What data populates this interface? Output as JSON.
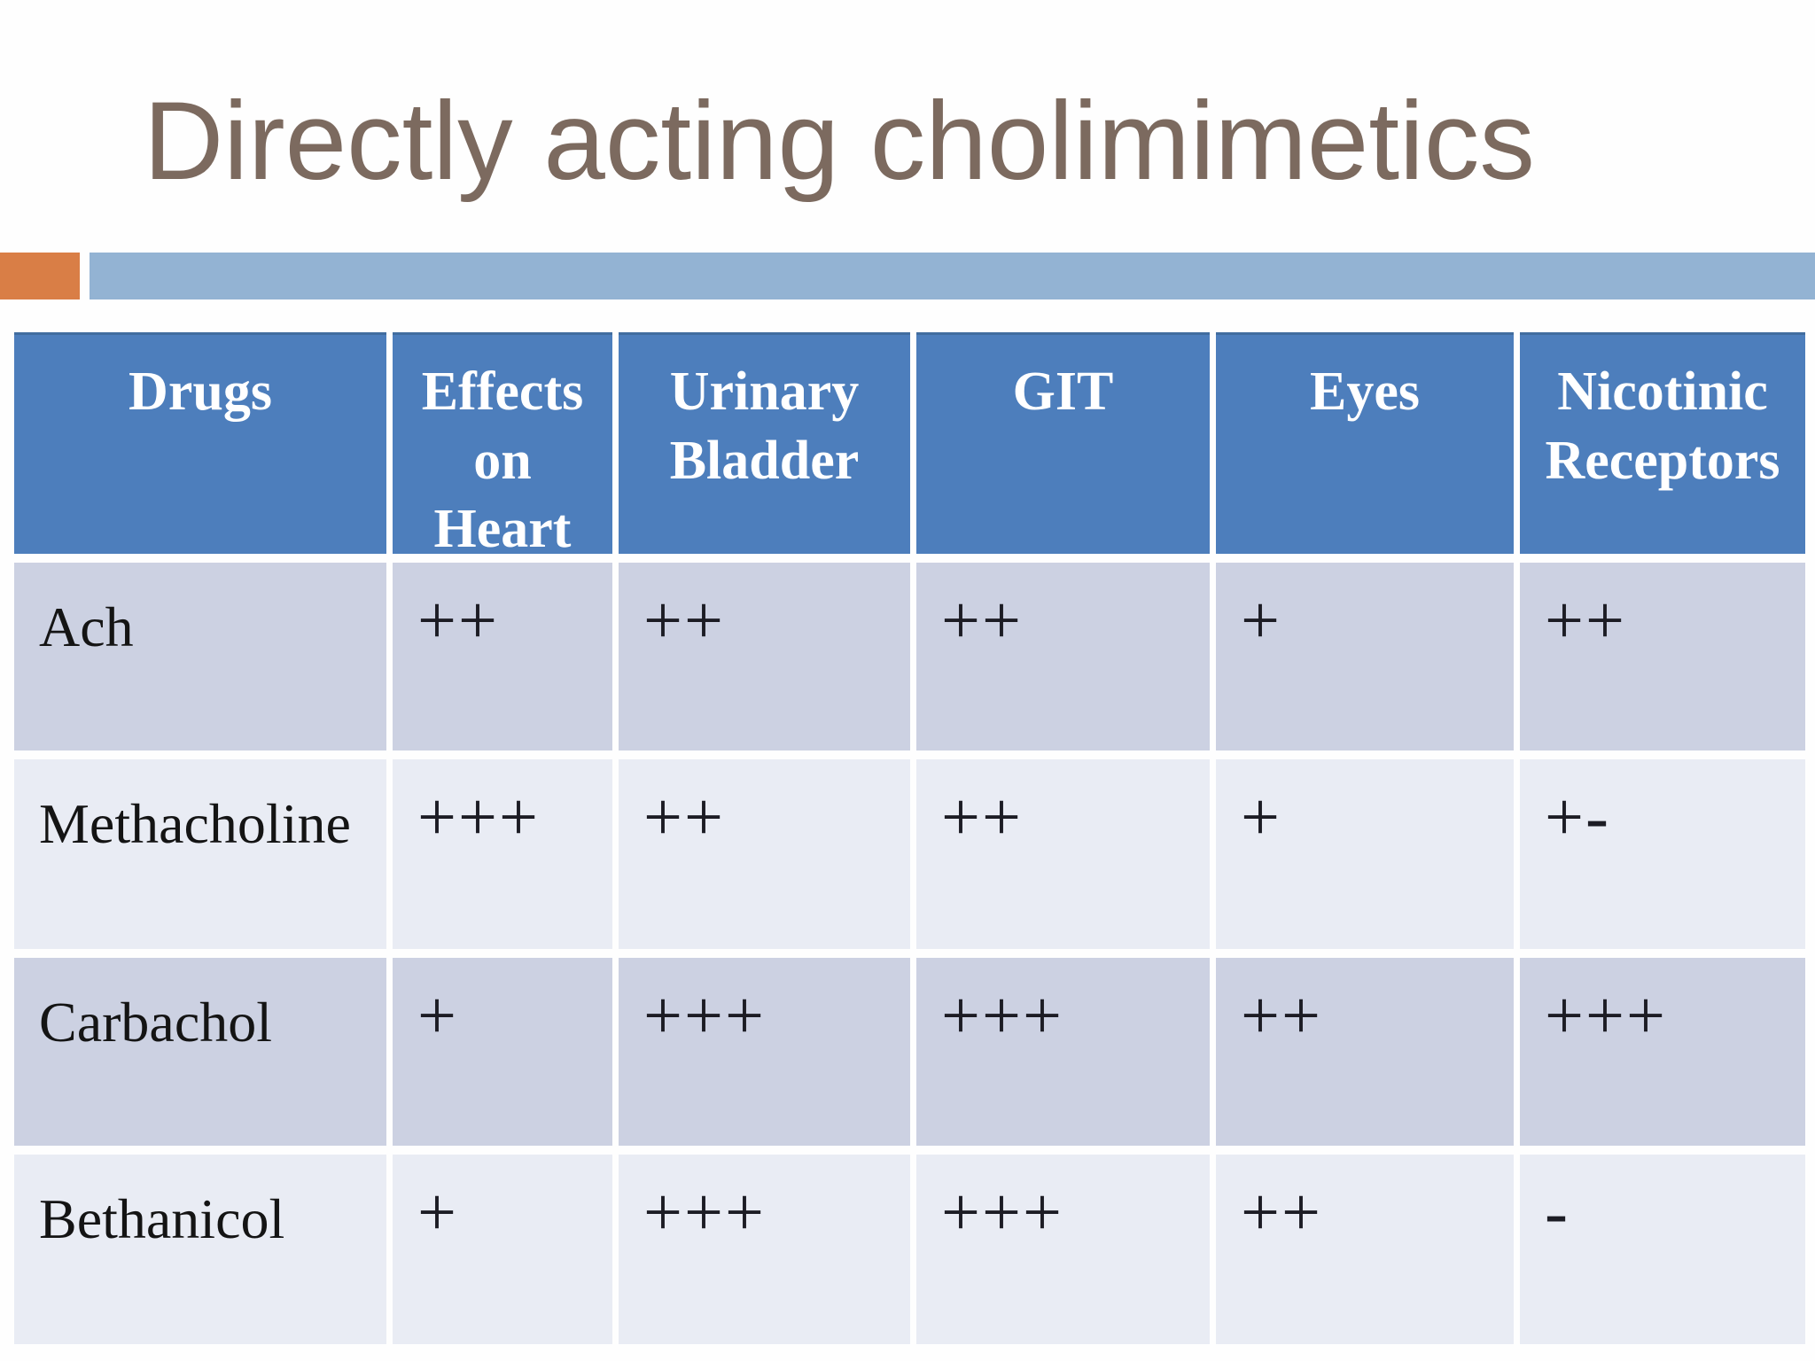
{
  "slide": {
    "title": "Directly acting cholimimetics"
  },
  "decor": {
    "orange_bar_color": "#d97e46",
    "blue_bar_color": "#93b3d3"
  },
  "table": {
    "header_bg": "#4d7ebc",
    "row_bg_dark": "#ccd1e2",
    "row_bg_light": "#e9ecf4",
    "columns": [
      "Drugs",
      "Effects on Heart",
      "Urinary Bladder",
      "GIT",
      "Eyes",
      "Nicotinic Receptors"
    ],
    "rows": [
      {
        "drug": "Ach",
        "values": [
          "++",
          "++",
          "++",
          "+",
          "++"
        ]
      },
      {
        "drug": "Methacholine",
        "values": [
          "+++",
          "++",
          "++",
          "+",
          "+-"
        ]
      },
      {
        "drug": "Carbachol",
        "values": [
          "+",
          "+++",
          "+++",
          "++",
          "+++"
        ]
      },
      {
        "drug": "Bethanicol",
        "values": [
          "+",
          "+++",
          "+++",
          "++",
          "-"
        ]
      }
    ]
  }
}
